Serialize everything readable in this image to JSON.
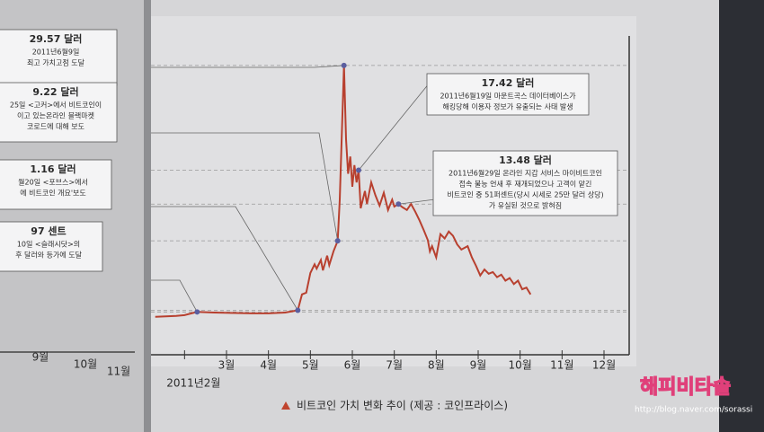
{
  "chart_data": {
    "type": "line",
    "caption": "비트코인 가치 변화 추이 (제공 : 코인프라이스)",
    "x": [
      1.3,
      1.8,
      2.0,
      2.3,
      2.7,
      3.2,
      3.6,
      4.0,
      4.4,
      4.7,
      4.8,
      4.9,
      5.0,
      5.1,
      5.15,
      5.25,
      5.3,
      5.4,
      5.45,
      5.55,
      5.65,
      5.7,
      5.8,
      5.85,
      5.9,
      5.95,
      6.0,
      6.05,
      6.1,
      6.15,
      6.2,
      6.3,
      6.35,
      6.45,
      6.55,
      6.65,
      6.75,
      6.85,
      6.95,
      7.0,
      7.1,
      7.2,
      7.3,
      7.4,
      7.5,
      7.6,
      7.7,
      7.8,
      7.85,
      7.9,
      8.0,
      8.1,
      8.2,
      8.3,
      8.4,
      8.5,
      8.6,
      8.75,
      8.85,
      8.95,
      9.05,
      9.15,
      9.25,
      9.35,
      9.45,
      9.55,
      9.65,
      9.75,
      9.85,
      9.95,
      10.05,
      10.15,
      10.25
    ],
    "series": [
      {
        "color": "#b8402f",
        "values": [
          0.4,
          0.5,
          0.6,
          0.97,
          0.9,
          0.85,
          0.8,
          0.8,
          0.9,
          1.16,
          3.0,
          3.2,
          5.5,
          6.5,
          6.0,
          7.0,
          5.8,
          7.5,
          6.4,
          8.0,
          9.22,
          14,
          29.57,
          21,
          17,
          19,
          15.5,
          18,
          16,
          17.42,
          13,
          15,
          13.5,
          16,
          14.5,
          13.3,
          14.8,
          12.8,
          14,
          13.2,
          13.48,
          13.1,
          12.8,
          13.5,
          12.6,
          11.6,
          10.5,
          9.3,
          8.0,
          8.6,
          7.3,
          10,
          9.5,
          10.3,
          9.8,
          8.8,
          8.2,
          8.6,
          7.3,
          6.3,
          5.2,
          5.9,
          5.4,
          5.6,
          5.0,
          5.3,
          4.6,
          4.9,
          4.2,
          4.6,
          3.6,
          3.8,
          3.0
        ]
      }
    ],
    "xlim": [
      1.2,
      12.6
    ],
    "xticks": [
      {
        "value": 2,
        "label": "2011년2월"
      },
      {
        "value": 3,
        "label": "3월"
      },
      {
        "value": 4,
        "label": "4월"
      },
      {
        "value": 5,
        "label": "5월"
      },
      {
        "value": 6,
        "label": "6월"
      },
      {
        "value": 7,
        "label": "7월"
      },
      {
        "value": 8,
        "label": "8월"
      },
      {
        "value": 9,
        "label": "9월"
      },
      {
        "value": 10,
        "label": "10월"
      },
      {
        "value": 11,
        "label": "11월"
      },
      {
        "value": 12,
        "label": "12월"
      }
    ],
    "ylim": [
      -4,
      33
    ],
    "annotations": [
      {
        "x": 5.8,
        "value": 29.57,
        "value_label": "29.57 달러",
        "lines": [
          "2011년6월9일",
          "최고 가치고점 도달"
        ]
      },
      {
        "x": 5.65,
        "value": 9.22,
        "value_label": "9.22 달러",
        "lines": [
          "25일 <고커>에서 비트코인이",
          "이고 있는온라인 블랙마켓",
          "코로드에 대해 보도"
        ]
      },
      {
        "x": 4.7,
        "value": 1.16,
        "value_label": "1.16 달러",
        "lines": [
          "월20일 <포브스>에서",
          "에 비트코인 개요'보도"
        ]
      },
      {
        "x": 2.3,
        "value": 0.97,
        "value_label": "97 센트",
        "lines": [
          "10일 <슬래시닷>의",
          "후 달러와 등가에 도달"
        ]
      },
      {
        "x": 6.15,
        "value": 17.42,
        "value_label": "17.42 달러",
        "lines": [
          "2011년6월19일 마운트곡스 데이터베이스가",
          "해킹당해 이용자 정보가 유출되는 사태 발생"
        ]
      },
      {
        "x": 7.1,
        "value": 13.48,
        "value_label": "13.48 달러",
        "lines": [
          "2011년6월29일 온라인 지갑 서비스 마이비트코인",
          "접속 불능 언새 후 재개되었으나 고객이 맡긴",
          "비트코인 중 51퍼센트(당시 시세로 25만 달러 상당)",
          "가 유실된 것으로 밝혀짐"
        ]
      }
    ]
  },
  "left_page": {
    "axis_labels": [
      "9월",
      "10월",
      "11월"
    ]
  },
  "watermark": {
    "title": "해피비타솔",
    "url": "http://blog.naver.com/sorassi"
  }
}
